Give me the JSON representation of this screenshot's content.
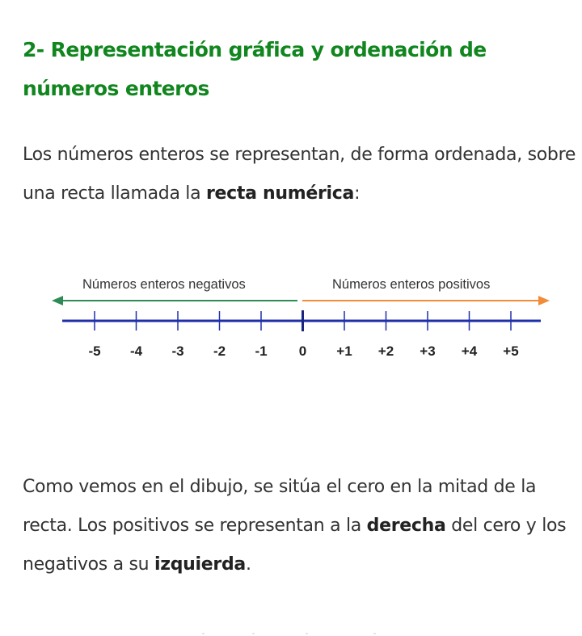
{
  "heading": "2- Representación gráfica y ordenación de números enteros",
  "intro": {
    "before": "Los números enteros se representan, de forma ordenada, sobre una recta llamada la ",
    "bold": "recta numérica",
    "after": ":"
  },
  "figure": {
    "label_negative": "Números enteros negativos",
    "label_positive": "Números enteros positivos",
    "ticks": [
      "-5",
      "-4",
      "-3",
      "-2",
      "-1",
      "0",
      "+1",
      "+2",
      "+3",
      "+4",
      "+5"
    ],
    "colors": {
      "negative_arrow": "#2e8b57",
      "positive_arrow": "#f28c38",
      "number_line": "#1f2fa8",
      "zero_tick": "#1a2580"
    }
  },
  "explanation": {
    "part1": "Como vemos en el dibujo, se sitúa el cero en la mitad de la recta. Los positivos se representan a la ",
    "bold1": "derecha",
    "part2": " del cero y los negativos a su ",
    "bold2": "izquierda",
    "part3": "."
  },
  "colors": {
    "heading": "#11861f",
    "text": "#333333"
  }
}
